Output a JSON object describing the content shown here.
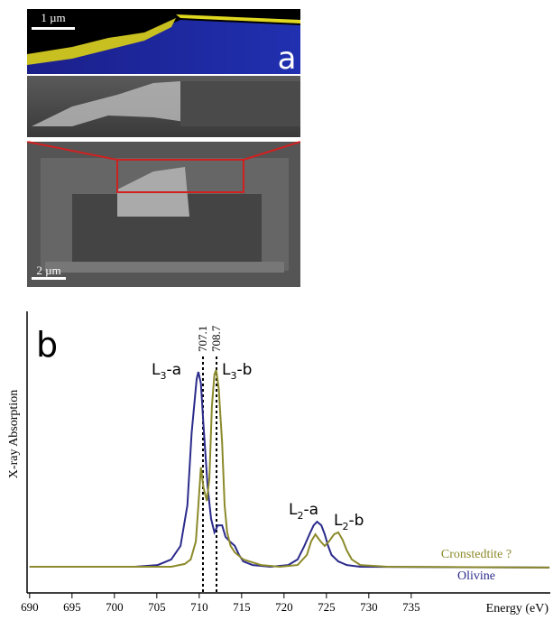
{
  "panel_a": {
    "label": "a",
    "scale_top": "1 µm",
    "scale_bottom": "2 µm"
  },
  "chart_data": {
    "type": "line",
    "panel_label": "b",
    "x_label": "Energy (eV)",
    "y_label": "X-ray Absorption",
    "xlim": [
      689.7,
      751.4
    ],
    "xticks": [
      690,
      695,
      700,
      705,
      710,
      715,
      720,
      725,
      730,
      735
    ],
    "ylim": [
      0,
      1
    ],
    "edge_labels": [
      "707.1",
      "708.7"
    ],
    "annotations": [
      {
        "main": "L",
        "sub": "3",
        "rest": "-a"
      },
      {
        "main": "L",
        "sub": "3",
        "rest": "-b"
      },
      {
        "main": "L",
        "sub": "2",
        "rest": "-a"
      },
      {
        "main": "L",
        "sub": "2",
        "rest": "-b"
      }
    ],
    "series": [
      {
        "name": "Olivine",
        "color": "#2b2b8c",
        "x": [
          690.0,
          702.4,
          705.1,
          706.7,
          707.8,
          708.6,
          709.1,
          709.7,
          709.9,
          710.2,
          710.5,
          711.0,
          711.4,
          711.8,
          712.2,
          712.7,
          713.1,
          713.6,
          714.2,
          714.7,
          715.2,
          716.3,
          718.4,
          720.5,
          721.6,
          722.4,
          723.1,
          723.5,
          723.9,
          724.4,
          724.8,
          725.2,
          725.6,
          726.4,
          727.4,
          729.0,
          751.3
        ],
        "values": [
          0.093,
          0.093,
          0.099,
          0.119,
          0.167,
          0.311,
          0.567,
          0.76,
          0.785,
          0.744,
          0.599,
          0.375,
          0.263,
          0.215,
          0.24,
          0.24,
          0.199,
          0.183,
          0.167,
          0.135,
          0.112,
          0.099,
          0.093,
          0.099,
          0.119,
          0.167,
          0.215,
          0.24,
          0.253,
          0.24,
          0.208,
          0.167,
          0.135,
          0.112,
          0.099,
          0.093,
          0.09
        ]
      },
      {
        "name": "Cronstedtite ?",
        "color": "#8c8a2b",
        "x": [
          690.0,
          702.4,
          706.7,
          708.3,
          709.0,
          709.6,
          709.9,
          710.2,
          710.5,
          710.9,
          711.2,
          711.5,
          711.8,
          712.0,
          712.3,
          712.7,
          713.0,
          713.3,
          713.7,
          714.2,
          715.2,
          717.3,
          719.5,
          721.6,
          722.7,
          723.2,
          723.7,
          724.3,
          724.8,
          725.3,
          725.9,
          726.4,
          726.9,
          727.4,
          728.0,
          729.0,
          732.2,
          751.3
        ],
        "values": [
          0.093,
          0.093,
          0.093,
          0.103,
          0.119,
          0.183,
          0.311,
          0.446,
          0.375,
          0.327,
          0.407,
          0.663,
          0.776,
          0.792,
          0.728,
          0.535,
          0.311,
          0.215,
          0.167,
          0.144,
          0.119,
          0.099,
          0.093,
          0.099,
          0.135,
          0.183,
          0.208,
          0.183,
          0.167,
          0.183,
          0.208,
          0.215,
          0.189,
          0.151,
          0.119,
          0.099,
          0.093,
          0.09
        ]
      }
    ]
  }
}
